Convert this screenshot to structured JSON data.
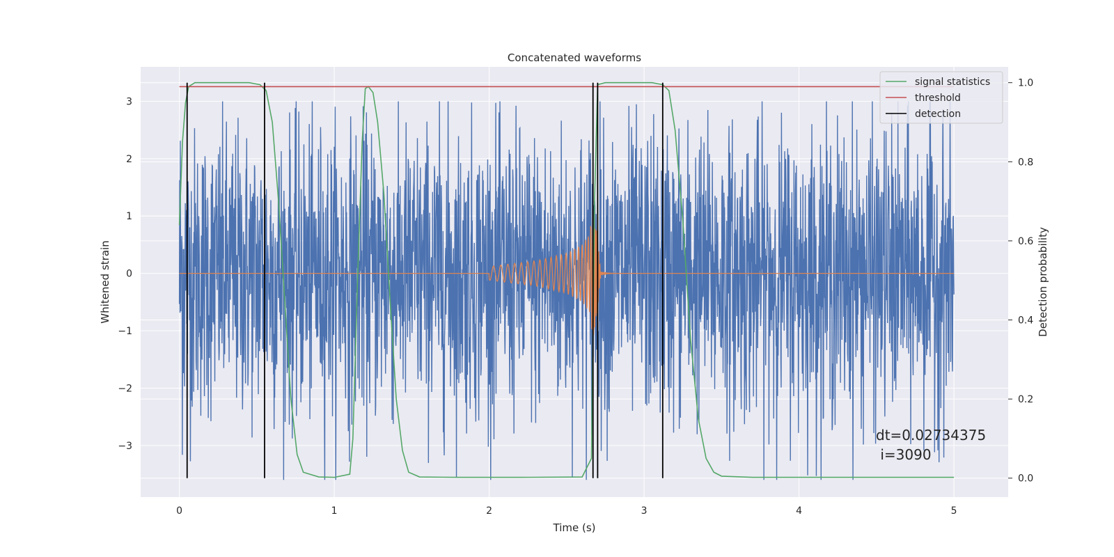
{
  "chart_data": {
    "type": "line",
    "title": "Concatenated waveforms",
    "xlabel": "Time (s)",
    "ylabel": "Whitened strain",
    "ylabel_right": "Detection probability",
    "xlim": [
      -0.25,
      5.35
    ],
    "ylim": [
      -3.9,
      3.6
    ],
    "ylim_right": [
      -0.048,
      1.04
    ],
    "xticks": [
      0,
      1,
      2,
      3,
      4,
      5
    ],
    "yticks": [
      -3,
      -2,
      -1,
      0,
      1,
      2,
      3
    ],
    "yticks_right": [
      0.0,
      0.2,
      0.4,
      0.6,
      0.8,
      1.0
    ],
    "xtick_labels": [
      "0",
      "1",
      "2",
      "3",
      "4",
      "5"
    ],
    "ytick_labels": [
      "−3",
      "−2",
      "−1",
      "0",
      "1",
      "2",
      "3"
    ],
    "ytick_right_labels": [
      "0.0",
      "0.2",
      "0.4",
      "0.6",
      "0.8",
      "1.0"
    ],
    "grid": true,
    "legend_position": "top-right",
    "colors": {
      "strain": "#4c72b0",
      "template": "#dd8452",
      "signal_statistics": "#55a868",
      "threshold": "#c44e52",
      "detection": "#000000",
      "background": "#eaeaf2",
      "grid": "#ffffff"
    },
    "legend": [
      {
        "name": "signal statistics",
        "color": "#55a868"
      },
      {
        "name": "threshold",
        "color": "#c44e52"
      },
      {
        "name": "detection",
        "color": "#000000"
      }
    ],
    "series": [
      {
        "name": "signal statistics",
        "axis": "right",
        "x": [
          0.0,
          0.02,
          0.04,
          0.06,
          0.1,
          0.15,
          0.3,
          0.45,
          0.52,
          0.56,
          0.6,
          0.64,
          0.68,
          0.72,
          0.76,
          0.8,
          0.9,
          1.0,
          1.1,
          1.12,
          1.15,
          1.18,
          1.2,
          1.22,
          1.25,
          1.28,
          1.32,
          1.36,
          1.4,
          1.44,
          1.48,
          1.55,
          1.8,
          2.2,
          2.6,
          2.66,
          2.68,
          2.7,
          2.75,
          2.85,
          3.05,
          3.12,
          3.16,
          3.2,
          3.25,
          3.3,
          3.35,
          3.4,
          3.45,
          3.5,
          3.7,
          4.2,
          4.6,
          5.0
        ],
        "y": [
          0.64,
          0.85,
          0.95,
          0.99,
          1.0,
          1.0,
          1.0,
          1.0,
          0.995,
          0.98,
          0.9,
          0.7,
          0.45,
          0.2,
          0.06,
          0.015,
          0.003,
          0.002,
          0.01,
          0.1,
          0.5,
          0.85,
          0.985,
          0.99,
          0.975,
          0.9,
          0.72,
          0.45,
          0.2,
          0.07,
          0.015,
          0.003,
          0.002,
          0.002,
          0.003,
          0.05,
          0.7,
          0.995,
          1.0,
          1.0,
          1.0,
          0.995,
          0.98,
          0.88,
          0.65,
          0.35,
          0.15,
          0.05,
          0.015,
          0.005,
          0.002,
          0.002,
          0.002,
          0.002
        ]
      },
      {
        "name": "threshold",
        "axis": "right",
        "x": [
          0.0,
          5.0
        ],
        "y": [
          0.99,
          0.99
        ]
      }
    ],
    "detections": [
      0.05,
      0.55,
      2.67,
      2.7,
      3.12
    ],
    "strain_envelope": {
      "x": [
        0.0,
        0.05,
        1.0,
        2.0,
        2.6,
        2.68,
        2.72,
        3.0,
        4.0,
        5.0
      ],
      "y": [
        2.2,
        1.6,
        1.6,
        1.6,
        1.6,
        1.7,
        1.6,
        1.6,
        1.6,
        1.6
      ]
    },
    "chirp": {
      "x": [
        0.0,
        2.0,
        2.3,
        2.5,
        2.6,
        2.65,
        2.67,
        2.69,
        2.72,
        5.0
      ],
      "y": [
        0.0,
        0.12,
        0.22,
        0.35,
        0.5,
        0.7,
        1.25,
        0.9,
        0.05,
        0.0
      ]
    },
    "annotations": [
      "dt=0.02734375",
      " i=3090"
    ]
  }
}
